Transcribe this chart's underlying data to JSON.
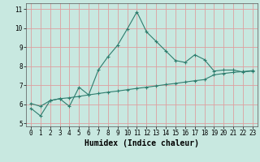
{
  "line1_x": [
    0,
    1,
    2,
    3,
    4,
    5,
    6,
    7,
    8,
    9,
    10,
    11,
    12,
    13,
    14,
    15,
    16,
    17,
    18,
    19,
    20,
    21,
    22,
    23
  ],
  "line1_y": [
    5.8,
    5.4,
    6.2,
    6.3,
    5.9,
    6.9,
    6.5,
    7.8,
    8.5,
    9.1,
    9.95,
    10.85,
    9.8,
    9.3,
    8.8,
    8.3,
    8.2,
    8.6,
    8.35,
    7.75,
    7.8,
    7.8,
    7.7,
    7.75
  ],
  "line2_x": [
    0,
    1,
    2,
    3,
    4,
    5,
    6,
    7,
    8,
    9,
    10,
    11,
    12,
    13,
    14,
    15,
    16,
    17,
    18,
    19,
    20,
    21,
    22,
    23
  ],
  "line2_y": [
    6.05,
    5.9,
    6.2,
    6.3,
    6.35,
    6.42,
    6.5,
    6.57,
    6.64,
    6.7,
    6.77,
    6.84,
    6.9,
    6.97,
    7.04,
    7.1,
    7.17,
    7.24,
    7.3,
    7.55,
    7.62,
    7.68,
    7.72,
    7.77
  ],
  "line_color": "#2e7d6e",
  "bg_color": "#c8e8e0",
  "grid_color": "#dda0a0",
  "xlabel": "Humidex (Indice chaleur)",
  "xlim": [
    -0.5,
    23.5
  ],
  "ylim": [
    4.85,
    11.3
  ],
  "xticks": [
    0,
    1,
    2,
    3,
    4,
    5,
    6,
    7,
    8,
    9,
    10,
    11,
    12,
    13,
    14,
    15,
    16,
    17,
    18,
    19,
    20,
    21,
    22,
    23
  ],
  "yticks": [
    5,
    6,
    7,
    8,
    9,
    10,
    11
  ],
  "tick_fontsize": 5.5,
  "label_fontsize": 7.0
}
